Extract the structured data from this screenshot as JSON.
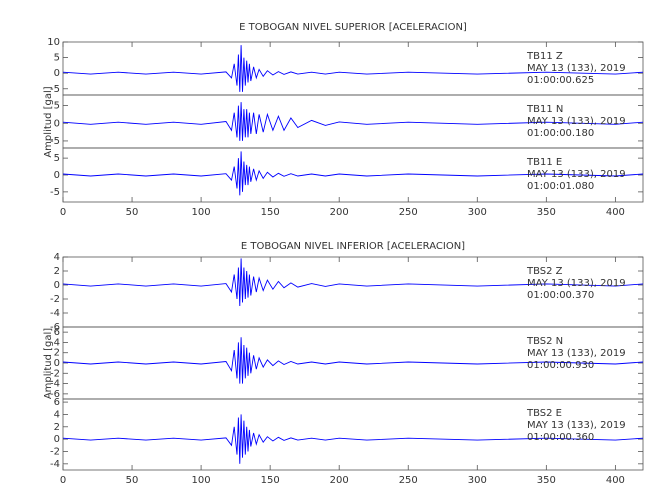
{
  "chart_data": [
    {
      "type": "line",
      "title": "E TOBOGAN NIVEL SUPERIOR [ACELERACION]",
      "ylabel": "Amplitud [gal]",
      "color": "#0000ff",
      "xlim": [
        0,
        420
      ],
      "xticks": [
        0,
        50,
        100,
        150,
        200,
        250,
        300,
        350,
        400
      ],
      "x": [
        0,
        20,
        40,
        60,
        80,
        100,
        118,
        122,
        124,
        126,
        127,
        128,
        129,
        130,
        131,
        132,
        133,
        134,
        135,
        136,
        138,
        140,
        142,
        145,
        148,
        152,
        156,
        160,
        165,
        170,
        180,
        190,
        200,
        220,
        250,
        300,
        350,
        400,
        420
      ],
      "panels": [
        {
          "station": "TB11   Z",
          "date": "MAY 13 (133), 2019",
          "time": "01:00:00.625",
          "ylim": [
            -7,
            10
          ],
          "yticks": [
            -5,
            0,
            5,
            10
          ],
          "values": [
            0.3,
            -0.3,
            0.3,
            -0.3,
            0.3,
            -0.3,
            0.4,
            -1.5,
            3,
            -4,
            6,
            -6,
            9,
            -6,
            5,
            -4,
            4,
            -3,
            3,
            -2.5,
            2,
            -1.5,
            1.2,
            -1,
            0.8,
            -0.6,
            0.5,
            -0.4,
            0.4,
            -0.3,
            0.3,
            -0.3,
            0.3,
            -0.3,
            0.3,
            -0.3,
            0.3,
            -0.3,
            0.3
          ]
        },
        {
          "station": "TB11   N",
          "date": "MAY 13 (133), 2019",
          "time": "01:00:00.180",
          "ylim": [
            -7,
            8
          ],
          "yticks": [
            -5,
            0,
            5
          ],
          "values": [
            0.3,
            -0.3,
            0.3,
            -0.3,
            0.3,
            -0.3,
            0.5,
            -2,
            3,
            -4,
            5,
            -5,
            6,
            -5,
            4,
            -4,
            4,
            -4,
            3,
            -3,
            3,
            -3,
            2.5,
            -2.5,
            2.5,
            -2,
            2,
            -2,
            1.5,
            -1.2,
            0.8,
            -0.6,
            0.4,
            -0.3,
            0.3,
            -0.3,
            0.3,
            -0.3,
            0.3
          ]
        },
        {
          "station": "TB11   E",
          "date": "MAY 13 (133), 2019",
          "time": "01:00:01.080",
          "ylim": [
            -8,
            8
          ],
          "yticks": [
            -5,
            0,
            5
          ],
          "values": [
            0.3,
            -0.3,
            0.3,
            -0.3,
            0.3,
            -0.3,
            0.4,
            -1.5,
            2.5,
            -4,
            5,
            -6,
            7,
            -5,
            4,
            -3,
            3,
            -3,
            2.5,
            -2,
            1.8,
            -1.5,
            1.2,
            -1,
            0.8,
            -0.6,
            0.5,
            -0.4,
            0.4,
            -0.3,
            0.3,
            -0.3,
            0.3,
            -0.3,
            0.3,
            -0.3,
            0.3,
            -0.3,
            0.3
          ]
        }
      ]
    },
    {
      "type": "line",
      "title": "E TOBOGAN NIVEL INFERIOR [ACELERACION]",
      "ylabel": "Amplitud [gal]",
      "color": "#0000ff",
      "xlim": [
        0,
        420
      ],
      "xticks": [
        0,
        50,
        100,
        150,
        200,
        250,
        300,
        350,
        400
      ],
      "x": [
        0,
        20,
        40,
        60,
        80,
        100,
        118,
        122,
        124,
        126,
        127,
        128,
        129,
        130,
        131,
        132,
        133,
        134,
        135,
        136,
        138,
        140,
        142,
        145,
        148,
        152,
        156,
        160,
        165,
        170,
        180,
        190,
        200,
        220,
        250,
        300,
        350,
        400,
        420
      ],
      "panels": [
        {
          "station": "TBS2   Z",
          "date": "MAY 13 (133), 2019",
          "time": "01:00:00.370",
          "ylim": [
            -6,
            4
          ],
          "yticks": [
            -6,
            -4,
            -2,
            0,
            2,
            4
          ],
          "values": [
            0.15,
            -0.15,
            0.15,
            -0.15,
            0.15,
            -0.15,
            0.2,
            -1,
            1.5,
            -2,
            2.5,
            -3,
            3.8,
            -2.5,
            2.5,
            -2,
            2,
            -1.8,
            1.5,
            -1.5,
            1.2,
            -1,
            1,
            -0.8,
            0.7,
            -0.6,
            0.5,
            -0.4,
            0.3,
            -0.3,
            0.2,
            -0.2,
            0.15,
            -0.15,
            0.15,
            -0.15,
            0.15,
            -0.15,
            0.15
          ]
        },
        {
          "station": "TBS2   N",
          "date": "MAY 13 (133), 2019",
          "time": "01:00:00.930",
          "ylim": [
            -7,
            7
          ],
          "yticks": [
            -6,
            -4,
            -2,
            0,
            2,
            4,
            6
          ],
          "values": [
            0.2,
            -0.2,
            0.2,
            -0.2,
            0.2,
            -0.2,
            0.3,
            -1.5,
            2.5,
            -3,
            4,
            -4,
            5,
            -4,
            3.5,
            -3,
            3,
            -2.5,
            2,
            -2,
            1.5,
            -1.2,
            1,
            -0.8,
            0.6,
            -0.5,
            0.4,
            -0.3,
            0.3,
            -0.2,
            0.2,
            -0.2,
            0.2,
            -0.2,
            0.2,
            -0.2,
            0.2,
            -0.2,
            0.2
          ]
        },
        {
          "station": "TBS2   E",
          "date": "MAY 13 (133), 2019",
          "time": "01:00:00.360",
          "ylim": [
            -5,
            6.5
          ],
          "yticks": [
            -4,
            -2,
            0,
            2,
            4,
            6
          ],
          "values": [
            0.15,
            -0.15,
            0.15,
            -0.15,
            0.15,
            -0.15,
            0.2,
            -1,
            2,
            -2.5,
            3.5,
            -4,
            4,
            -3,
            3,
            -2.5,
            2,
            -2,
            1.5,
            -1.2,
            1,
            -0.8,
            0.7,
            -0.5,
            0.4,
            -0.3,
            0.3,
            -0.2,
            0.2,
            -0.15,
            0.15,
            -0.15,
            0.15,
            -0.15,
            0.15,
            -0.15,
            0.15,
            -0.15,
            0.15
          ]
        }
      ]
    }
  ]
}
